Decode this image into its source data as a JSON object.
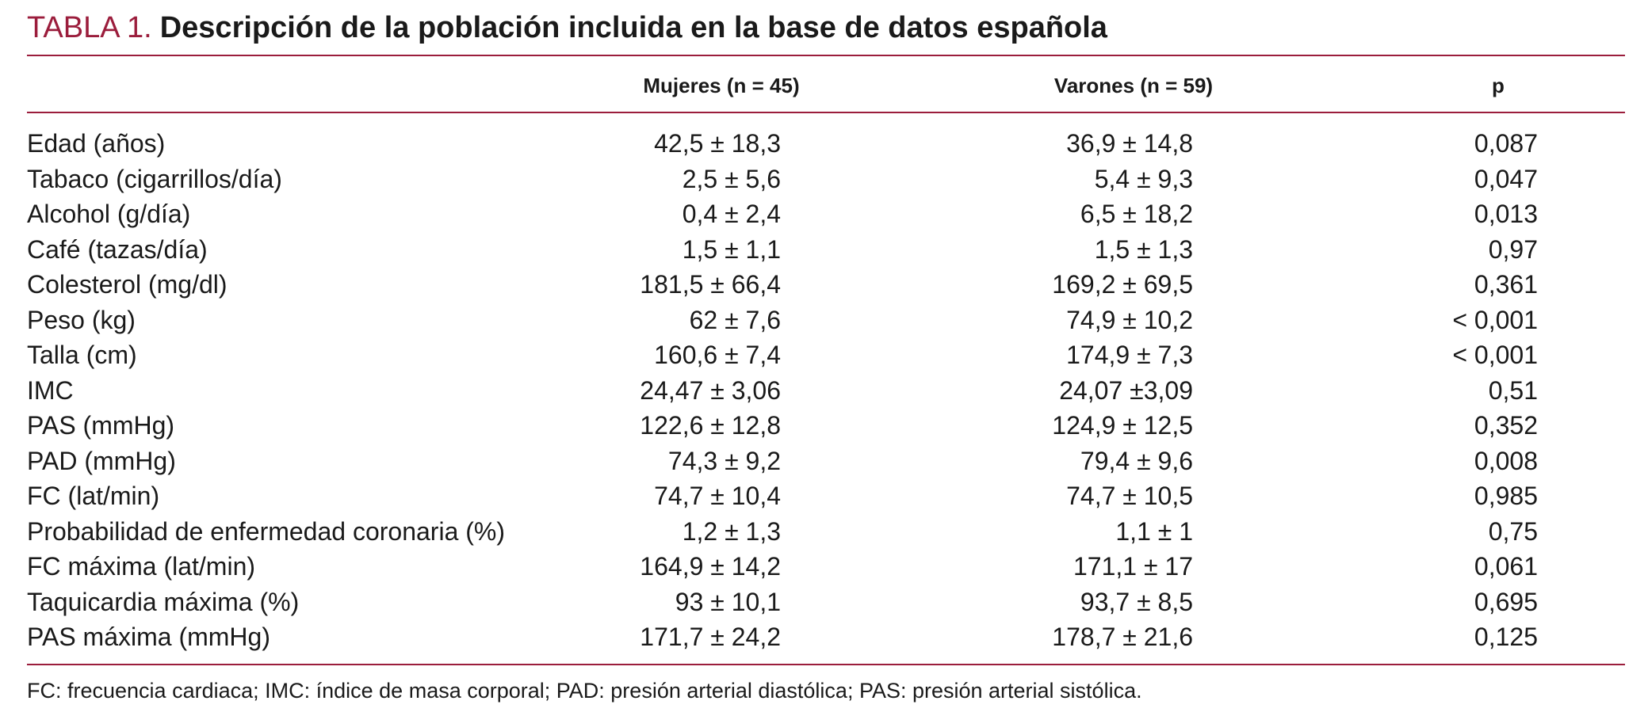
{
  "table": {
    "title_label": "TABLA 1.",
    "title_text": "Descripción de la población incluida en la base de datos española",
    "headers": [
      "",
      "Mujeres (n = 45)",
      "Varones (n = 59)",
      "p"
    ],
    "rows": [
      {
        "label": "Edad (años)",
        "mujeres": "42,5 ± 18,3",
        "varones": "36,9 ± 14,8",
        "p": "0,087"
      },
      {
        "label": "Tabaco (cigarrillos/día)",
        "mujeres": "2,5 ± 5,6",
        "varones": "5,4 ± 9,3",
        "p": "0,047"
      },
      {
        "label": "Alcohol (g/día)",
        "mujeres": "0,4 ± 2,4",
        "varones": "6,5 ± 18,2",
        "p": "0,013"
      },
      {
        "label": "Café (tazas/día)",
        "mujeres": "1,5 ± 1,1",
        "varones": "1,5 ± 1,3",
        "p": "0,97"
      },
      {
        "label": "Colesterol (mg/dl)",
        "mujeres": "181,5 ± 66,4",
        "varones": "169,2 ± 69,5",
        "p": "0,361"
      },
      {
        "label": "Peso (kg)",
        "mujeres": "62 ± 7,6",
        "varones": "74,9 ± 10,2",
        "p": "< 0,001"
      },
      {
        "label": "Talla (cm)",
        "mujeres": "160,6 ± 7,4",
        "varones": "174,9 ± 7,3",
        "p": "< 0,001"
      },
      {
        "label": "IMC",
        "mujeres": "24,47 ± 3,06",
        "varones": "24,07 ±3,09",
        "p": "0,51"
      },
      {
        "label": "PAS (mmHg)",
        "mujeres": "122,6 ± 12,8",
        "varones": "124,9 ± 12,5",
        "p": "0,352"
      },
      {
        "label": "PAD (mmHg)",
        "mujeres": "74,3 ± 9,2",
        "varones": "79,4 ± 9,6",
        "p": "0,008"
      },
      {
        "label": "FC (lat/min)",
        "mujeres": "74,7 ± 10,4",
        "varones": "74,7 ± 10,5",
        "p": "0,985"
      },
      {
        "label": "Probabilidad de enfermedad coronaria (%)",
        "mujeres": "1,2 ± 1,3",
        "varones": "1,1 ± 1",
        "p": "0,75"
      },
      {
        "label": "FC máxima (lat/min)",
        "mujeres": "164,9 ± 14,2",
        "varones": "171,1 ± 17",
        "p": "0,061"
      },
      {
        "label": "Taquicardia máxima (%)",
        "mujeres": "93 ± 10,1",
        "varones": "93,7 ± 8,5",
        "p": "0,695"
      },
      {
        "label": "PAS máxima (mmHg)",
        "mujeres": "171,7 ± 24,2",
        "varones": "178,7 ± 21,6",
        "p": "0,125"
      }
    ],
    "footnote": "FC: frecuencia cardiaca; IMC: índice de masa corporal; PAD: presión arterial diastólica; PAS: presión arterial sistólica."
  },
  "colors": {
    "accent": "#9b1d3c",
    "text": "#1a1a1a"
  }
}
